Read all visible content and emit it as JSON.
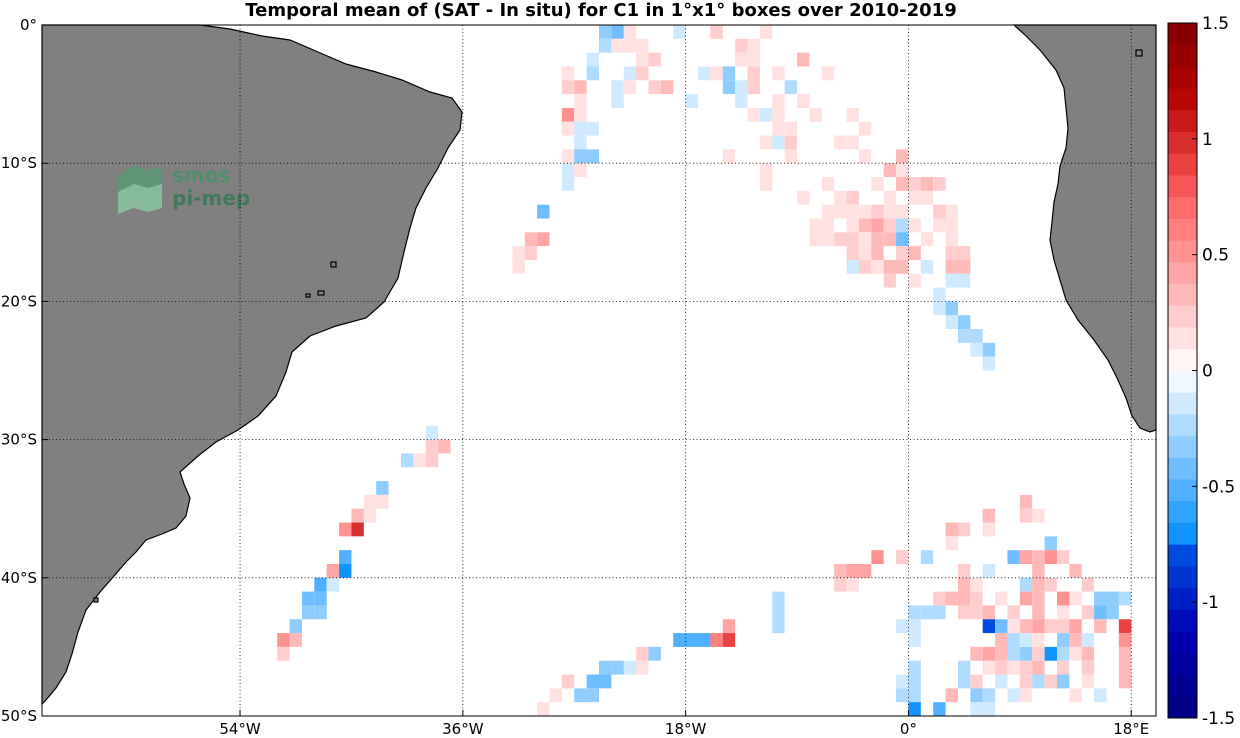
{
  "title": "Temporal mean of (SAT - In situ) for C1 in 1°x1° boxes over 2010-2019",
  "logo": {
    "line1": "smos",
    "line2": "pi-mep"
  },
  "lat_ticks": [
    "0°",
    "10°S",
    "20°S",
    "30°S",
    "40°S",
    "50°S"
  ],
  "lon_ticks": [
    "54°W",
    "36°W",
    "18°W",
    "0°",
    "18°E"
  ],
  "colorbar": {
    "ticks": [
      "1.5",
      "1",
      "0.5",
      "0",
      "-0.5",
      "-1",
      "-1.5"
    ],
    "range": [
      -1.5,
      1.5
    ],
    "levels": 32
  },
  "map": {
    "projection": "equirectangular",
    "lon_range": [
      -70,
      20
    ],
    "lat_range": [
      -50,
      0
    ],
    "grid": "dotted",
    "land_color": "#808080",
    "ocean_color": "#ffffff"
  },
  "chart_data": {
    "type": "heatmap",
    "title": "Temporal mean of (SAT - In situ) for C1 in 1°x1° boxes over 2010-2019",
    "xlabel": "",
    "ylabel": "",
    "colorscale": "blue-white-red",
    "vmin": -1.5,
    "vmax": 1.5,
    "cells": [
      [
        -24.5,
        -0.5,
        -0.3
      ],
      [
        -23.5,
        -0.5,
        -0.4
      ],
      [
        -22.5,
        -0.5,
        0.15
      ],
      [
        -18.5,
        -0.5,
        -0.15
      ],
      [
        -15.5,
        -0.5,
        0.2
      ],
      [
        -11.5,
        -0.5,
        0.15
      ],
      [
        -24.5,
        -1.5,
        -0.2
      ],
      [
        -23.5,
        -1.5,
        0.15
      ],
      [
        -22.5,
        -1.5,
        0.1
      ],
      [
        -21.5,
        -1.5,
        0.1
      ],
      [
        -13.5,
        -1.5,
        0.25
      ],
      [
        -12.5,
        -1.5,
        0.15
      ],
      [
        -25.5,
        -2.5,
        -0.15
      ],
      [
        -21.5,
        -2.5,
        0.15
      ],
      [
        -20.5,
        -2.5,
        0.25
      ],
      [
        -13.5,
        -2.5,
        0.15
      ],
      [
        -12.5,
        -2.5,
        0.15
      ],
      [
        -8.5,
        -2.5,
        0.35
      ],
      [
        -27.5,
        -3.5,
        0.15
      ],
      [
        -25.5,
        -3.5,
        -0.25
      ],
      [
        -22.5,
        -3.5,
        -0.15
      ],
      [
        -21.5,
        -3.5,
        0.2
      ],
      [
        -16.5,
        -3.5,
        -0.15
      ],
      [
        -15.5,
        -3.5,
        0.1
      ],
      [
        -14.5,
        -3.5,
        -0.3
      ],
      [
        -12.5,
        -3.5,
        0.2
      ],
      [
        -10.5,
        -3.5,
        0.1
      ],
      [
        -6.5,
        -3.5,
        0.1
      ],
      [
        -27.5,
        -4.5,
        0.2
      ],
      [
        -26.5,
        -4.5,
        0.3
      ],
      [
        -23.5,
        -4.5,
        -0.15
      ],
      [
        -22.5,
        -4.5,
        0.1
      ],
      [
        -20.5,
        -4.5,
        0.25
      ],
      [
        -19.5,
        -4.5,
        0.3
      ],
      [
        -14.5,
        -4.5,
        -0.3
      ],
      [
        -13.5,
        -4.5,
        -0.15
      ],
      [
        -12.5,
        -4.5,
        0.25
      ],
      [
        -9.5,
        -4.5,
        -0.2
      ],
      [
        -26.5,
        -5.5,
        0.15
      ],
      [
        -23.5,
        -5.5,
        -0.15
      ],
      [
        -17.5,
        -5.5,
        -0.15
      ],
      [
        -13.5,
        -5.5,
        -0.1
      ],
      [
        -10.5,
        -5.5,
        0.1
      ],
      [
        -8.5,
        -5.5,
        0.15
      ],
      [
        -27.5,
        -6.5,
        0.5
      ],
      [
        -26.5,
        -6.5,
        0.1
      ],
      [
        -12.5,
        -6.5,
        0.1
      ],
      [
        -11.5,
        -6.5,
        -0.1
      ],
      [
        -10.5,
        -6.5,
        0.1
      ],
      [
        -7.5,
        -6.5,
        0.1
      ],
      [
        -4.5,
        -6.5,
        0.15
      ],
      [
        -27.5,
        -7.5,
        0.15
      ],
      [
        -26.5,
        -7.5,
        -0.1
      ],
      [
        -25.5,
        -7.5,
        -0.1
      ],
      [
        -10.5,
        -7.5,
        0.1
      ],
      [
        -9.5,
        -7.5,
        0.1
      ],
      [
        -3.5,
        -7.5,
        0.15
      ],
      [
        -26.5,
        -8.5,
        -0.15
      ],
      [
        -11.5,
        -8.5,
        0.1
      ],
      [
        -10.5,
        -8.5,
        -0.15
      ],
      [
        -9.5,
        -8.5,
        0.25
      ],
      [
        -5.5,
        -8.5,
        0.15
      ],
      [
        -4.5,
        -8.5,
        0.1
      ],
      [
        -27.5,
        -9.5,
        0.15
      ],
      [
        -26.5,
        -9.5,
        -0.3
      ],
      [
        -25.5,
        -9.5,
        -0.3
      ],
      [
        -14.5,
        -9.5,
        0.15
      ],
      [
        -9.5,
        -9.5,
        0.1
      ],
      [
        -3.5,
        -9.5,
        0.15
      ],
      [
        -0.5,
        -9.5,
        0.3
      ],
      [
        -27.5,
        -10.5,
        -0.15
      ],
      [
        -26.5,
        -10.5,
        0.1
      ],
      [
        -11.5,
        -10.5,
        0.1
      ],
      [
        -1.5,
        -10.5,
        0.3
      ],
      [
        -0.5,
        -10.5,
        0.1
      ],
      [
        -27.5,
        -11.5,
        -0.15
      ],
      [
        -11.5,
        -11.5,
        0.1
      ],
      [
        -6.5,
        -11.5,
        0.15
      ],
      [
        -2.5,
        -11.5,
        0.1
      ],
      [
        -0.5,
        -11.5,
        0.3
      ],
      [
        0.5,
        -11.5,
        0.25
      ],
      [
        1.5,
        -11.5,
        0.3
      ],
      [
        2.5,
        -11.5,
        0.2
      ],
      [
        -8.5,
        -12.5,
        0.15
      ],
      [
        -5.5,
        -12.5,
        0.1
      ],
      [
        -4.5,
        -12.5,
        0.2
      ],
      [
        -1.5,
        -12.5,
        0.1
      ],
      [
        0.5,
        -12.5,
        0.15
      ],
      [
        1.5,
        -12.5,
        0.1
      ],
      [
        -29.5,
        -13.5,
        -0.4
      ],
      [
        -6.5,
        -13.5,
        0.1
      ],
      [
        -5.5,
        -13.5,
        0.15
      ],
      [
        -4.5,
        -13.5,
        0.1
      ],
      [
        -3.5,
        -13.5,
        0.15
      ],
      [
        -2.5,
        -13.5,
        0.2
      ],
      [
        -1.5,
        -13.5,
        0.15
      ],
      [
        -0.5,
        -13.5,
        0.1
      ],
      [
        2.5,
        -13.5,
        0.2
      ],
      [
        3.5,
        -13.5,
        0.1
      ],
      [
        -7.5,
        -14.5,
        0.15
      ],
      [
        -6.5,
        -14.5,
        0.1
      ],
      [
        -4.5,
        -14.5,
        0.15
      ],
      [
        -3.5,
        -14.5,
        0.3
      ],
      [
        -2.5,
        -14.5,
        0.4
      ],
      [
        -1.5,
        -14.5,
        0.2
      ],
      [
        -0.5,
        -14.5,
        -0.2
      ],
      [
        0.5,
        -14.5,
        0.15
      ],
      [
        2.5,
        -14.5,
        0.1
      ],
      [
        3.5,
        -14.5,
        0.15
      ],
      [
        -30.5,
        -15.5,
        0.3
      ],
      [
        -29.5,
        -15.5,
        0.4
      ],
      [
        -7.5,
        -15.5,
        0.15
      ],
      [
        -6.5,
        -15.5,
        0.1
      ],
      [
        -5.5,
        -15.5,
        0.25
      ],
      [
        -4.5,
        -15.5,
        0.2
      ],
      [
        -3.5,
        -15.5,
        0.15
      ],
      [
        -2.5,
        -15.5,
        0.3
      ],
      [
        -1.5,
        -15.5,
        0.35
      ],
      [
        -0.5,
        -15.5,
        -0.4
      ],
      [
        1.5,
        -15.5,
        0.1
      ],
      [
        3.5,
        -15.5,
        0.1
      ],
      [
        -31.5,
        -16.5,
        0.1
      ],
      [
        -30.5,
        -16.5,
        0.2
      ],
      [
        -4.5,
        -16.5,
        0.2
      ],
      [
        -3.5,
        -16.5,
        0.15
      ],
      [
        -2.5,
        -16.5,
        0.3
      ],
      [
        -0.5,
        -16.5,
        0.25
      ],
      [
        0.5,
        -16.5,
        0.3
      ],
      [
        3.5,
        -16.5,
        0.2
      ],
      [
        4.5,
        -16.5,
        0.25
      ],
      [
        -31.5,
        -17.5,
        0.15
      ],
      [
        -4.5,
        -17.5,
        -0.15
      ],
      [
        -3.5,
        -17.5,
        0.25
      ],
      [
        -2.5,
        -17.5,
        0.1
      ],
      [
        -1.5,
        -17.5,
        0.35
      ],
      [
        -0.5,
        -17.5,
        0.3
      ],
      [
        1.5,
        -17.5,
        -0.15
      ],
      [
        3.5,
        -17.5,
        0.3
      ],
      [
        4.5,
        -17.5,
        0.3
      ],
      [
        -1.5,
        -18.5,
        0.2
      ],
      [
        0.5,
        -18.5,
        0.15
      ],
      [
        3.5,
        -18.5,
        -0.15
      ],
      [
        4.5,
        -18.5,
        -0.15
      ],
      [
        2.5,
        -19.5,
        -0.15
      ],
      [
        2.5,
        -20.5,
        -0.1
      ],
      [
        3.5,
        -20.5,
        -0.35
      ],
      [
        3.5,
        -21.5,
        -0.15
      ],
      [
        4.5,
        -21.5,
        -0.3
      ],
      [
        4.5,
        -22.5,
        -0.2
      ],
      [
        5.5,
        -22.5,
        -0.25
      ],
      [
        5.5,
        -23.5,
        -0.15
      ],
      [
        6.5,
        -23.5,
        -0.3
      ],
      [
        6.5,
        -24.5,
        -0.15
      ],
      [
        -38.5,
        -29.5,
        -0.15
      ],
      [
        -38.5,
        -30.5,
        0.2
      ],
      [
        -37.5,
        -30.5,
        0.3
      ],
      [
        -40.5,
        -31.5,
        -0.25
      ],
      [
        -39.5,
        -31.5,
        0.1
      ],
      [
        -38.5,
        -31.5,
        0.2
      ],
      [
        -42.5,
        -33.5,
        -0.3
      ],
      [
        -43.5,
        -34.5,
        0.15
      ],
      [
        -42.5,
        -34.5,
        0.15
      ],
      [
        -44.5,
        -35.5,
        0.3
      ],
      [
        -43.5,
        -35.5,
        0.15
      ],
      [
        -45.5,
        -36.5,
        0.5
      ],
      [
        -44.5,
        -36.5,
        0.95
      ],
      [
        -45.5,
        -38.5,
        -0.5
      ],
      [
        -46.5,
        -39.5,
        0.4
      ],
      [
        -45.5,
        -39.5,
        -0.7
      ],
      [
        -47.5,
        -40.5,
        -0.5
      ],
      [
        -46.5,
        -40.5,
        -0.1
      ],
      [
        -48.5,
        -41.5,
        -0.45
      ],
      [
        -47.5,
        -41.5,
        -0.4
      ],
      [
        -48.5,
        -42.5,
        -0.35
      ],
      [
        -47.5,
        -42.5,
        -0.3
      ],
      [
        -49.5,
        -43.5,
        -0.3
      ],
      [
        -50.5,
        -44.5,
        0.5
      ],
      [
        -49.5,
        -44.5,
        0.3
      ],
      [
        -50.5,
        -45.5,
        0.25
      ],
      [
        -10.5,
        -41.5,
        -0.2
      ],
      [
        -10.5,
        -42.5,
        -0.2
      ],
      [
        -10.5,
        -43.5,
        -0.2
      ],
      [
        -14.5,
        -43.5,
        0.45
      ],
      [
        -18.5,
        -44.5,
        -0.5
      ],
      [
        -17.5,
        -44.5,
        -0.5
      ],
      [
        -16.5,
        -44.5,
        -0.5
      ],
      [
        -15.5,
        -44.5,
        0.6
      ],
      [
        -14.5,
        -44.5,
        0.85
      ],
      [
        -20.5,
        -45.5,
        -0.3
      ],
      [
        -21.5,
        -45.5,
        0.25
      ],
      [
        -21.5,
        -46.5,
        0.15
      ],
      [
        -22.5,
        -46.5,
        -0.1
      ],
      [
        -23.5,
        -46.5,
        -0.35
      ],
      [
        -24.5,
        -46.5,
        -0.35
      ],
      [
        -24.5,
        -47.5,
        -0.4
      ],
      [
        -25.5,
        -47.5,
        -0.4
      ],
      [
        -27.5,
        -47.5,
        0.2
      ],
      [
        -26.5,
        -48.5,
        -0.35
      ],
      [
        -25.5,
        -48.5,
        -0.35
      ],
      [
        -28.5,
        -48.5,
        0.15
      ],
      [
        -29.5,
        -49.5,
        0.15
      ],
      [
        9.5,
        -34.5,
        0.3
      ],
      [
        6.5,
        -35.5,
        0.3
      ],
      [
        9.5,
        -35.5,
        0.2
      ],
      [
        10.5,
        -35.5,
        0.1
      ],
      [
        3.5,
        -36.5,
        0.35
      ],
      [
        4.5,
        -36.5,
        0.25
      ],
      [
        6.5,
        -36.5,
        0.15
      ],
      [
        3.5,
        -37.5,
        0.1
      ],
      [
        11.5,
        -37.5,
        -0.35
      ],
      [
        -2.5,
        -38.5,
        0.55
      ],
      [
        -0.5,
        -38.5,
        0.2
      ],
      [
        1.5,
        -38.5,
        -0.2
      ],
      [
        8.5,
        -38.5,
        -0.4
      ],
      [
        9.5,
        -38.5,
        0.4
      ],
      [
        10.5,
        -38.5,
        0.3
      ],
      [
        11.5,
        -38.5,
        0.5
      ],
      [
        12.5,
        -38.5,
        0.25
      ],
      [
        -5.5,
        -39.5,
        0.3
      ],
      [
        -4.5,
        -39.5,
        0.45
      ],
      [
        -3.5,
        -39.5,
        0.45
      ],
      [
        4.5,
        -39.5,
        0.25
      ],
      [
        6.5,
        -39.5,
        -0.15
      ],
      [
        10.5,
        -39.5,
        0.3
      ],
      [
        13.5,
        -39.5,
        0.3
      ],
      [
        -5.5,
        -40.5,
        0.2
      ],
      [
        -4.5,
        -40.5,
        0.15
      ],
      [
        4.5,
        -40.5,
        0.3
      ],
      [
        5.5,
        -40.5,
        0.15
      ],
      [
        9.5,
        -40.5,
        -0.2
      ],
      [
        10.5,
        -40.5,
        0.3
      ],
      [
        11.5,
        -40.5,
        0.2
      ],
      [
        14.5,
        -40.5,
        0.25
      ],
      [
        2.5,
        -41.5,
        0.2
      ],
      [
        3.5,
        -41.5,
        0.3
      ],
      [
        4.5,
        -41.5,
        0.35
      ],
      [
        5.5,
        -41.5,
        0.2
      ],
      [
        7.5,
        -41.5,
        0.1
      ],
      [
        9.5,
        -41.5,
        0.4
      ],
      [
        10.5,
        -41.5,
        0.3
      ],
      [
        12.5,
        -41.5,
        0.5
      ],
      [
        13.5,
        -41.5,
        0.15
      ],
      [
        15.5,
        -41.5,
        -0.35
      ],
      [
        16.5,
        -41.5,
        -0.3
      ],
      [
        17.5,
        -41.5,
        -0.2
      ],
      [
        0.5,
        -42.5,
        -0.2
      ],
      [
        1.5,
        -42.5,
        -0.25
      ],
      [
        2.5,
        -42.5,
        -0.2
      ],
      [
        4.5,
        -42.5,
        0.2
      ],
      [
        5.5,
        -42.5,
        0.25
      ],
      [
        6.5,
        -42.5,
        0.3
      ],
      [
        8.5,
        -42.5,
        0.2
      ],
      [
        10.5,
        -42.5,
        0.35
      ],
      [
        12.5,
        -42.5,
        0.15
      ],
      [
        14.5,
        -42.5,
        0.2
      ],
      [
        15.5,
        -42.5,
        -0.4
      ],
      [
        16.5,
        -42.5,
        -0.35
      ],
      [
        -0.5,
        -43.5,
        -0.15
      ],
      [
        0.5,
        -43.5,
        -0.15
      ],
      [
        6.5,
        -43.5,
        -0.8
      ],
      [
        7.5,
        -43.5,
        -0.4
      ],
      [
        8.5,
        -43.5,
        0.1
      ],
      [
        9.5,
        -43.5,
        0.3
      ],
      [
        10.5,
        -43.5,
        0.4
      ],
      [
        11.5,
        -43.5,
        0.2
      ],
      [
        12.5,
        -43.5,
        0.25
      ],
      [
        13.5,
        -43.5,
        0.4
      ],
      [
        15.5,
        -43.5,
        0.3
      ],
      [
        17.5,
        -43.5,
        0.9
      ],
      [
        0.5,
        -44.5,
        -0.1
      ],
      [
        7.5,
        -44.5,
        0.3
      ],
      [
        8.5,
        -44.5,
        -0.2
      ],
      [
        9.5,
        -44.5,
        -0.15
      ],
      [
        10.5,
        -44.5,
        0.15
      ],
      [
        12.5,
        -44.5,
        -0.3
      ],
      [
        13.5,
        -44.5,
        0.3
      ],
      [
        14.5,
        -44.5,
        -0.15
      ],
      [
        17.5,
        -44.5,
        0.5
      ],
      [
        5.5,
        -45.5,
        0.3
      ],
      [
        6.5,
        -45.5,
        0.4
      ],
      [
        7.5,
        -45.5,
        0.3
      ],
      [
        8.5,
        -45.5,
        -0.2
      ],
      [
        9.5,
        -45.5,
        -0.3
      ],
      [
        10.5,
        -45.5,
        0.2
      ],
      [
        11.5,
        -45.5,
        -0.7
      ],
      [
        12.5,
        -45.5,
        -0.25
      ],
      [
        13.5,
        -45.5,
        0.15
      ],
      [
        14.5,
        -45.5,
        0.35
      ],
      [
        17.5,
        -45.5,
        0.35
      ],
      [
        0.5,
        -46.5,
        -0.2
      ],
      [
        4.5,
        -46.5,
        -0.2
      ],
      [
        6.5,
        -46.5,
        0.15
      ],
      [
        7.5,
        -46.5,
        0.2
      ],
      [
        8.5,
        -46.5,
        0.15
      ],
      [
        9.5,
        -46.5,
        0.25
      ],
      [
        10.5,
        -46.5,
        0.3
      ],
      [
        12.5,
        -46.5,
        0.2
      ],
      [
        14.5,
        -46.5,
        0.25
      ],
      [
        17.5,
        -46.5,
        0.3
      ],
      [
        -0.5,
        -47.5,
        -0.15
      ],
      [
        0.5,
        -47.5,
        -0.2
      ],
      [
        4.5,
        -47.5,
        -0.25
      ],
      [
        5.5,
        -47.5,
        0.2
      ],
      [
        7.5,
        -47.5,
        -0.15
      ],
      [
        9.5,
        -47.5,
        0.25
      ],
      [
        10.5,
        -47.5,
        -0.2
      ],
      [
        11.5,
        -47.5,
        0.2
      ],
      [
        12.5,
        -47.5,
        -0.3
      ],
      [
        14.5,
        -47.5,
        0.15
      ],
      [
        17.5,
        -47.5,
        0.35
      ],
      [
        -0.5,
        -48.5,
        -0.2
      ],
      [
        0.5,
        -48.5,
        -0.2
      ],
      [
        3.5,
        -48.5,
        0.3
      ],
      [
        5.5,
        -48.5,
        -0.3
      ],
      [
        6.5,
        -48.5,
        -0.25
      ],
      [
        8.5,
        -48.5,
        -0.15
      ],
      [
        9.5,
        -48.5,
        0.15
      ],
      [
        13.5,
        -48.5,
        0.15
      ],
      [
        15.5,
        -48.5,
        -0.1
      ],
      [
        0.5,
        -49.5,
        -0.75
      ],
      [
        2.5,
        -49.5,
        -0.5
      ],
      [
        5.5,
        -49.5,
        -0.15
      ],
      [
        6.5,
        -49.5,
        -0.15
      ]
    ]
  }
}
